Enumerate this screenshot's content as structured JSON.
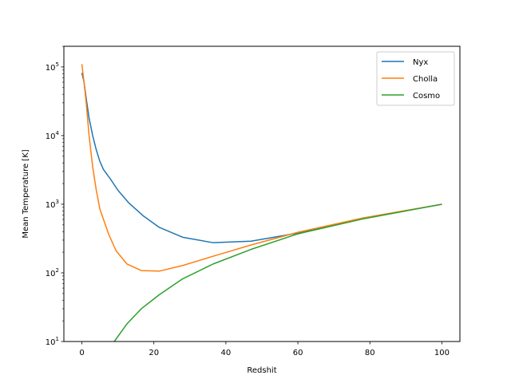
{
  "chart_data": {
    "type": "line",
    "title": "",
    "xlabel": "Redshit",
    "ylabel": "Mean Temperature  [K]",
    "xlim": [
      -5,
      105
    ],
    "ylim": [
      10,
      200000
    ],
    "yscale": "log",
    "grid": false,
    "legend_position": "top-right",
    "x_ticks": [
      0,
      20,
      40,
      60,
      80,
      100
    ],
    "x_tick_labels": [
      "0",
      "20",
      "40",
      "60",
      "80",
      "100"
    ],
    "y_ticks": [
      10,
      100,
      1000,
      10000,
      100000
    ],
    "y_tick_labels": [
      {
        "base": "10",
        "exp": "1"
      },
      {
        "base": "10",
        "exp": "2"
      },
      {
        "base": "10",
        "exp": "3"
      },
      {
        "base": "10",
        "exp": "4"
      },
      {
        "base": "10",
        "exp": "5"
      }
    ],
    "series": [
      {
        "name": "Nyx",
        "color": "#1f77b4",
        "x": [
          0,
          0.6,
          1.2,
          2,
          3,
          4,
          5,
          6,
          8,
          10,
          13,
          17,
          21.5,
          28,
          36.5,
          47,
          60,
          78,
          100
        ],
        "y": [
          82000,
          60000,
          35000,
          18000,
          10000,
          6200,
          4200,
          3200,
          2300,
          1600,
          1050,
          680,
          460,
          330,
          275,
          290,
          380,
          620,
          1000
        ]
      },
      {
        "name": "Cholla",
        "color": "#ff7f0e",
        "x": [
          0,
          0.6,
          1.2,
          2,
          3,
          4,
          5,
          6,
          7.5,
          9.5,
          12.5,
          16.5,
          21.5,
          28,
          36.5,
          47,
          60,
          78,
          100
        ],
        "y": [
          110000,
          60000,
          30000,
          10000,
          3500,
          1600,
          850,
          600,
          360,
          210,
          135,
          108,
          106,
          128,
          175,
          255,
          390,
          630,
          1000
        ]
      },
      {
        "name": "Cosmo",
        "color": "#2ca02c",
        "x": [
          9,
          12.5,
          16.5,
          21.5,
          28,
          36.5,
          47,
          60,
          78,
          100
        ],
        "y": [
          10,
          18,
          30,
          48,
          82,
          135,
          220,
          370,
          610,
          1000
        ]
      }
    ]
  }
}
